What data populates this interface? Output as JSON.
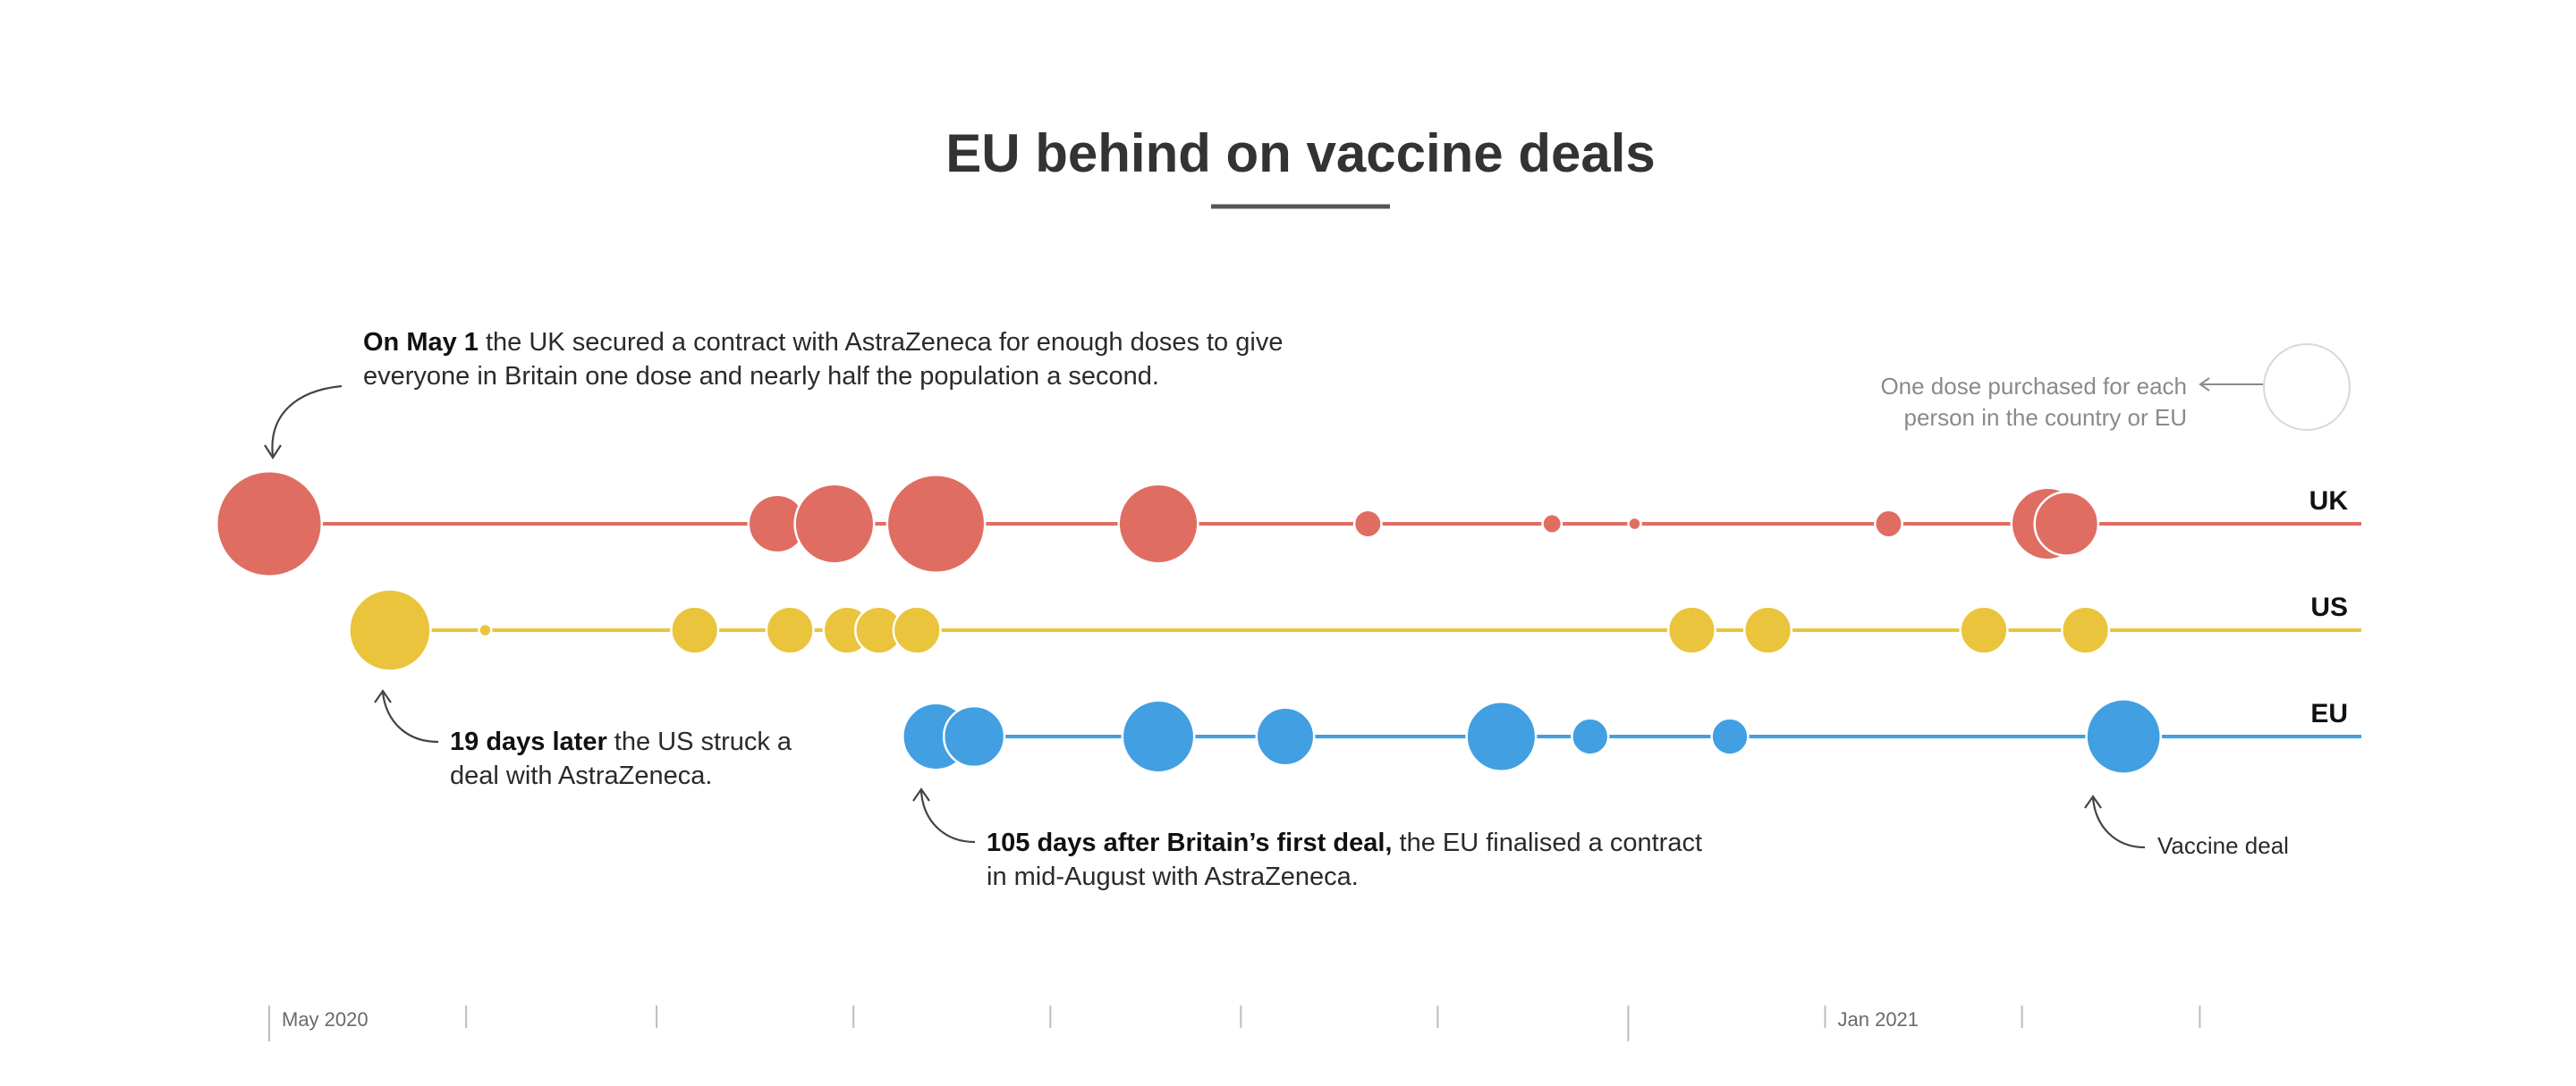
{
  "colors": {
    "UK": "#e06d62",
    "US": "#eac43c",
    "EU": "#419fe2",
    "title": "#333333",
    "axis": "#bdbdbd"
  },
  "chart_data": {
    "type": "bubble-timeline",
    "title": "EU behind on vaccine deals",
    "series_order": [
      "UK",
      "US",
      "EU"
    ],
    "x_axis": {
      "ticks": [
        "2020-05-01",
        "2020-06-01",
        "2020-07-01",
        "2020-08-01",
        "2020-09-01",
        "2020-10-01",
        "2020-11-01",
        "2020-12-01",
        "2021-01-01",
        "2021-02-01",
        "2021-03-01"
      ],
      "labels": [
        {
          "date": "2020-05-01",
          "text": "May 2020"
        },
        {
          "date": "2021-01-01",
          "text": "Jan 2021"
        }
      ],
      "end": "2021-04-01"
    },
    "series": [
      {
        "name": "UK",
        "deals": [
          {
            "date": "2020-05-01",
            "doses_per_person": 1.5
          },
          {
            "date": "2020-07-20",
            "doses_per_person": 0.45
          },
          {
            "date": "2020-07-29",
            "doses_per_person": 0.85
          },
          {
            "date": "2020-08-14",
            "doses_per_person": 1.3
          },
          {
            "date": "2020-09-18",
            "doses_per_person": 0.85
          },
          {
            "date": "2020-10-21",
            "doses_per_person": 0.1
          },
          {
            "date": "2020-11-19",
            "doses_per_person": 0.05
          },
          {
            "date": "2020-12-02",
            "doses_per_person": 0.02
          },
          {
            "date": "2021-01-11",
            "doses_per_person": 0.1
          },
          {
            "date": "2021-02-05",
            "doses_per_person": 0.7
          },
          {
            "date": "2021-02-08",
            "doses_per_person": 0.55
          }
        ]
      },
      {
        "name": "US",
        "deals": [
          {
            "date": "2020-05-20",
            "doses_per_person": 0.9
          },
          {
            "date": "2020-06-04",
            "doses_per_person": 0.02
          },
          {
            "date": "2020-07-07",
            "doses_per_person": 0.3
          },
          {
            "date": "2020-07-22",
            "doses_per_person": 0.3
          },
          {
            "date": "2020-07-31",
            "doses_per_person": 0.3
          },
          {
            "date": "2020-08-05",
            "doses_per_person": 0.3
          },
          {
            "date": "2020-08-11",
            "doses_per_person": 0.3
          },
          {
            "date": "2020-12-11",
            "doses_per_person": 0.3
          },
          {
            "date": "2020-12-23",
            "doses_per_person": 0.3
          },
          {
            "date": "2021-01-26",
            "doses_per_person": 0.3
          },
          {
            "date": "2021-02-11",
            "doses_per_person": 0.3
          }
        ]
      },
      {
        "name": "EU",
        "deals": [
          {
            "date": "2020-08-14",
            "doses_per_person": 0.6
          },
          {
            "date": "2020-08-20",
            "doses_per_person": 0.5
          },
          {
            "date": "2020-09-18",
            "doses_per_person": 0.7
          },
          {
            "date": "2020-10-08",
            "doses_per_person": 0.45
          },
          {
            "date": "2020-11-11",
            "doses_per_person": 0.65
          },
          {
            "date": "2020-11-25",
            "doses_per_person": 0.18
          },
          {
            "date": "2020-12-17",
            "doses_per_person": 0.18
          },
          {
            "date": "2021-02-17",
            "doses_per_person": 0.75
          }
        ]
      }
    ],
    "legend": {
      "text_lines": [
        "One dose purchased for each",
        "person in the country or EU"
      ],
      "reference_doses_per_person": 1.0
    },
    "annotations": [
      {
        "id": "uk",
        "bold": "On May 1",
        "lines": [
          " the UK secured a contract with AstraZeneca for enough doses to give",
          "everyone in Britain one dose and nearly half the population a second."
        ]
      },
      {
        "id": "us",
        "bold": "19 days later",
        "lines": [
          " the US struck a",
          "deal with AstraZeneca."
        ]
      },
      {
        "id": "eu",
        "bold": "105 days after Britain’s first deal,",
        "lines": [
          " the EU finalised a contract",
          "in mid-August with AstraZeneca."
        ]
      },
      {
        "id": "vd",
        "bold": "",
        "lines": [
          "Vaccine deal"
        ]
      }
    ]
  }
}
